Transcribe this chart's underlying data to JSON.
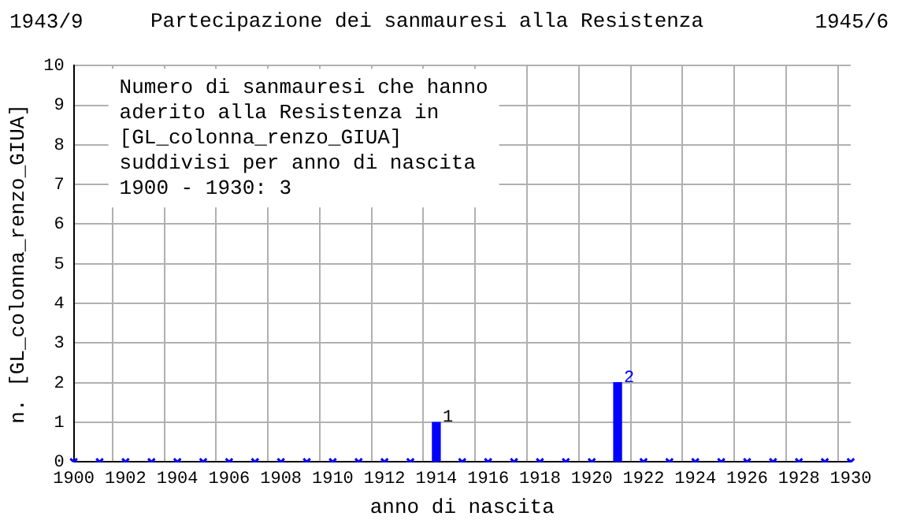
{
  "chart_data": {
    "type": "bar",
    "title": "Partecipazione dei sanmauresi alla Resistenza",
    "xlabel": "anno di nascita",
    "ylabel": "n. [GL_colonna_renzo_GIUA]",
    "annotations": [
      "1943/9",
      "1945/6",
      "Numero di sanmauresi che hanno\naderito alla Resistenza in\n[GL_colonna_renzo_GIUA]\nsuddivisi per anno di nascita\n1900 - 1930: 3"
    ],
    "categories": [
      "1900",
      null,
      "1902",
      null,
      "1904",
      null,
      "1906",
      null,
      "1908",
      null,
      "1910",
      null,
      "1912",
      null,
      "1914",
      null,
      "1916",
      null,
      "1918",
      null,
      "1920",
      null,
      "1922",
      null,
      "1924",
      null,
      "1926",
      null,
      "1928",
      null,
      "1930"
    ],
    "series": [
      {
        "color": "#0000ff",
        "values": [
          0,
          0,
          0,
          0,
          0,
          0,
          0,
          0,
          0,
          0,
          0,
          0,
          0,
          0,
          1,
          0,
          0,
          0,
          0,
          0,
          0,
          2,
          0,
          0,
          0,
          0,
          0,
          0,
          0,
          0,
          0
        ],
        "value_labels": [
          null,
          null,
          null,
          null,
          null,
          null,
          null,
          null,
          null,
          null,
          null,
          null,
          null,
          null,
          "1",
          null,
          null,
          null,
          null,
          null,
          null,
          "2",
          null,
          null,
          null,
          null,
          null,
          null,
          null,
          null,
          null
        ]
      },
      {
        "type": "scatter",
        "color": "#0000ff",
        "marker": "cross",
        "values": [
          0,
          0,
          0,
          0,
          0,
          0,
          0,
          0,
          0,
          0,
          0,
          0,
          0,
          0,
          0,
          0,
          0,
          0,
          0,
          0,
          0,
          0,
          0,
          0,
          0,
          0,
          0,
          0,
          0,
          0,
          0
        ]
      }
    ],
    "ylim": [
      0,
      10
    ],
    "yticks": [
      0,
      1,
      2,
      3,
      4,
      5,
      6,
      7,
      8,
      9,
      10
    ],
    "grid": true,
    "legend": false
  }
}
